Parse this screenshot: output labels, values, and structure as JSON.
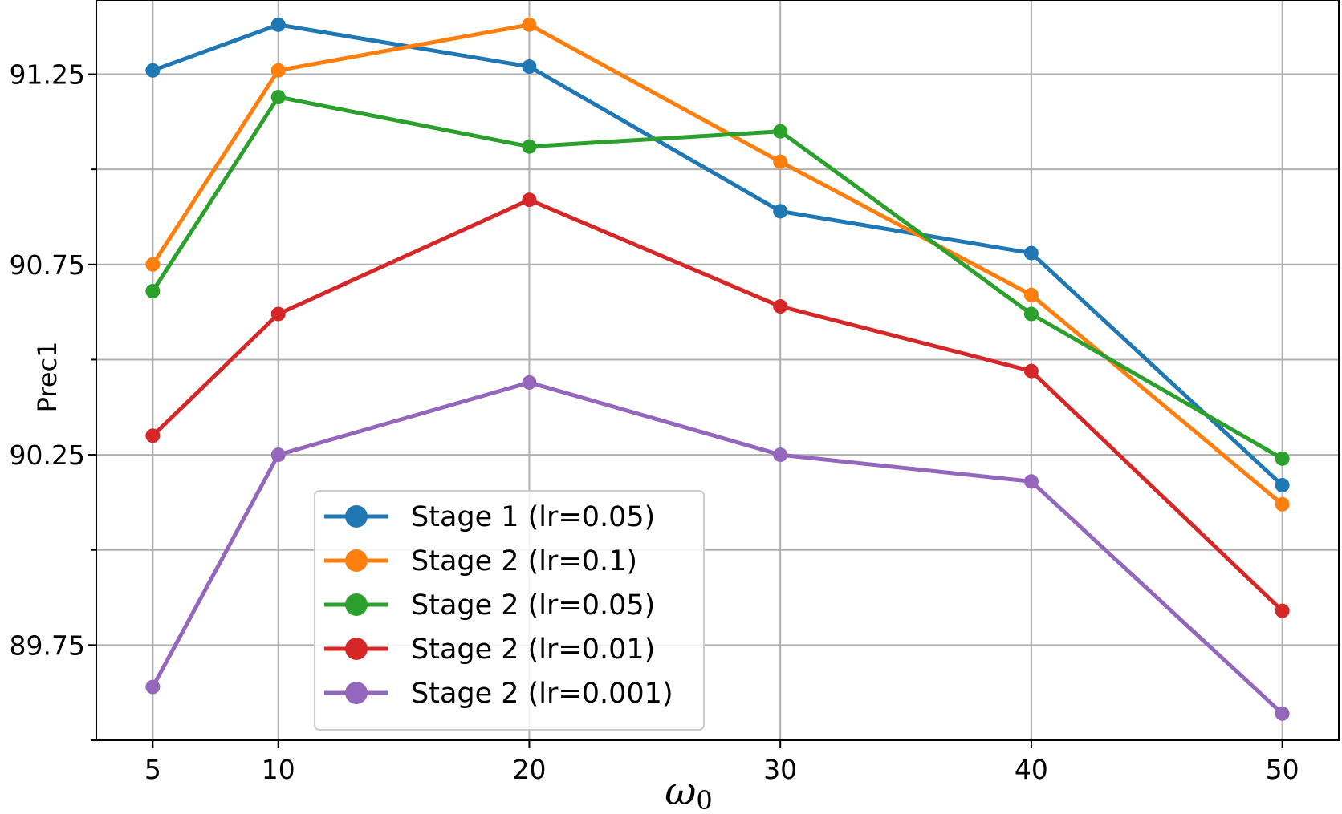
{
  "chart_data": {
    "type": "line",
    "title": "",
    "xlabel": "ω",
    "xlabel_subscript": "0",
    "ylabel": "Prec1",
    "x": [
      5,
      10,
      20,
      30,
      40,
      50
    ],
    "x_tick_labels": [
      "5",
      "10",
      "20",
      "30",
      "40",
      "50"
    ],
    "xlim": [
      2.75,
      52.25
    ],
    "ylim": [
      89.5,
      91.445
    ],
    "y_ticks_major": [
      89.75,
      90.25,
      90.75,
      91.25
    ],
    "y_tick_labels": [
      "89.75",
      "90.25",
      "90.75",
      "91.25"
    ],
    "y_ticks_minor": [
      89.5,
      90.0,
      90.5,
      91.0
    ],
    "grid": true,
    "legend_position": "lower-left",
    "series": [
      {
        "name": "Stage 1 (lr=0.05)",
        "color": "#1f77b4",
        "values": [
          91.26,
          91.38,
          91.27,
          90.89,
          90.78,
          90.17
        ]
      },
      {
        "name": "Stage 2 (lr=0.1)",
        "color": "#ff7f0e",
        "values": [
          90.75,
          91.26,
          91.38,
          91.02,
          90.67,
          90.12
        ]
      },
      {
        "name": "Stage 2 (lr=0.05)",
        "color": "#2ca02c",
        "values": [
          90.68,
          91.19,
          91.06,
          91.1,
          90.62,
          90.24
        ]
      },
      {
        "name": "Stage 2 (lr=0.01)",
        "color": "#d62728",
        "values": [
          90.3,
          90.62,
          90.92,
          90.64,
          90.47,
          89.84
        ]
      },
      {
        "name": "Stage 2 (lr=0.001)",
        "color": "#9467bd",
        "values": [
          89.64,
          90.25,
          90.44,
          90.25,
          90.18,
          89.57
        ]
      }
    ]
  }
}
